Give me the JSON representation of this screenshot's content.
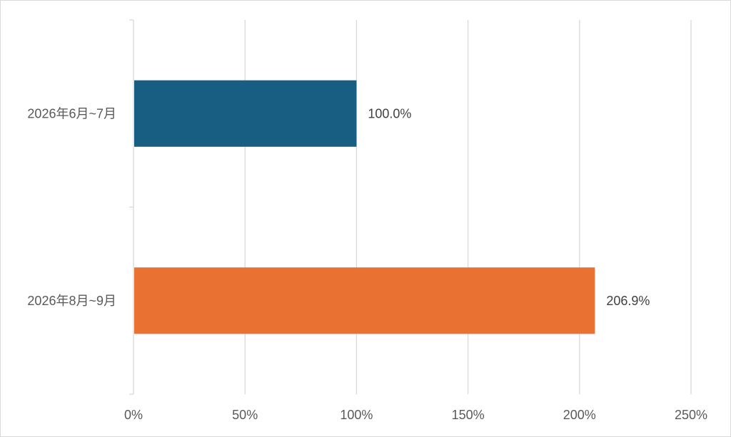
{
  "chart_data": {
    "type": "bar",
    "orientation": "horizontal",
    "title": "",
    "xlabel": "",
    "ylabel": "",
    "categories": [
      "2026年6月~7月",
      "2026年8月~9月"
    ],
    "values": [
      100.0,
      206.9
    ],
    "data_labels": [
      "100.0%",
      "206.9%"
    ],
    "bar_colors": [
      "#175E82",
      "#E97132"
    ],
    "xlim": [
      0,
      250
    ],
    "x_ticks": [
      0,
      50,
      100,
      150,
      200,
      250
    ],
    "x_tick_labels": [
      "0%",
      "50%",
      "100%",
      "150%",
      "200%",
      "250%"
    ],
    "grid": true,
    "legend": "none"
  }
}
